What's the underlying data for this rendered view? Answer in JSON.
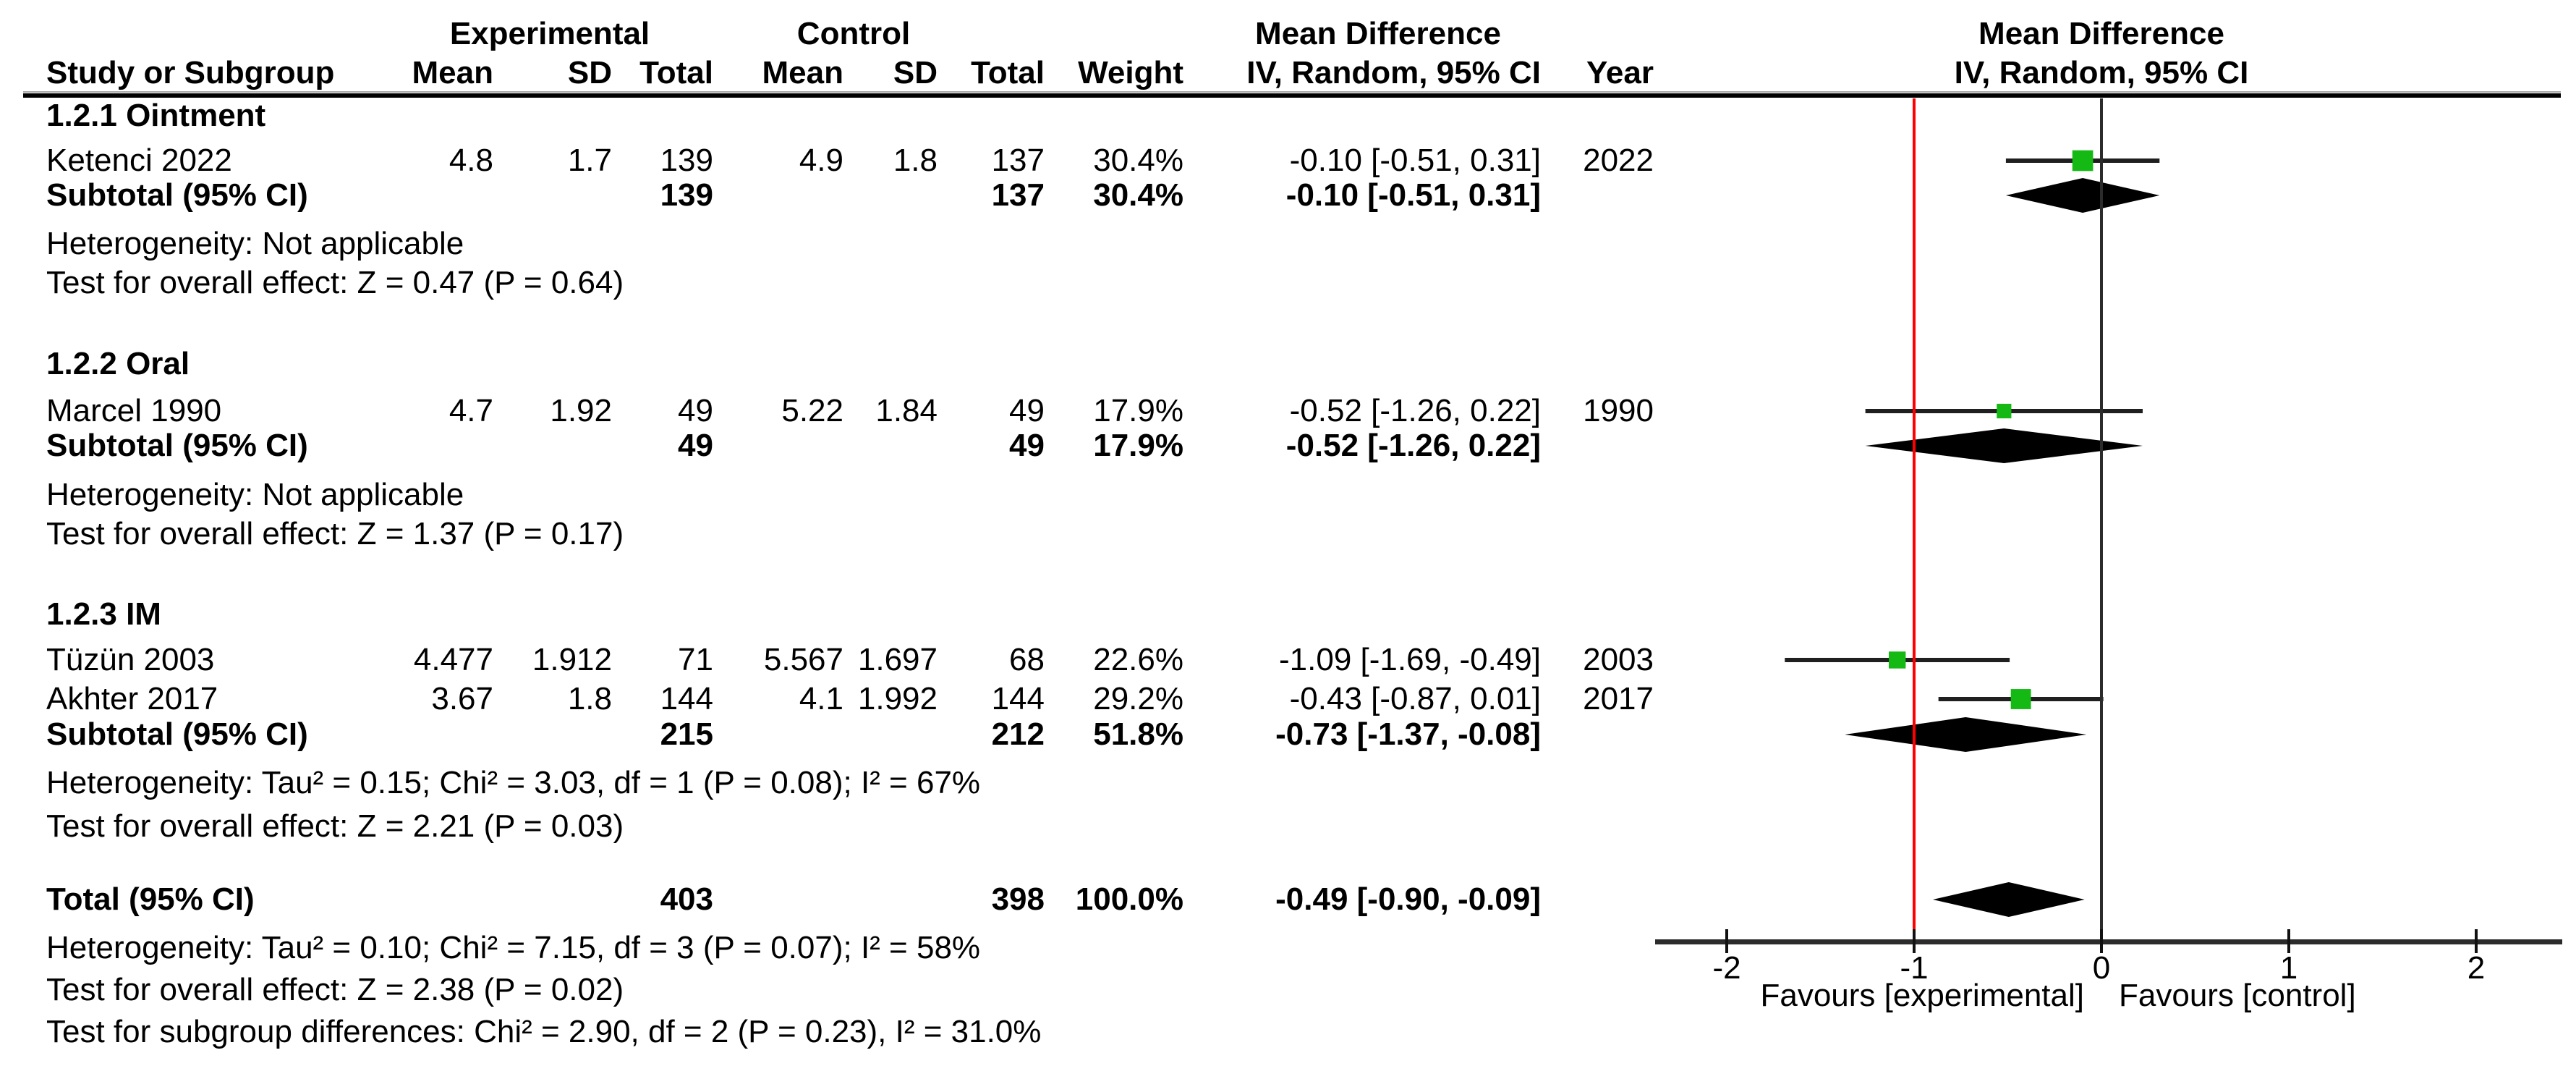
{
  "colors": {
    "marker_green": "#14b914",
    "reference_line_red": "#ff0000",
    "zero_line": "#2b2b2b",
    "axis_line": "#2b2b2b",
    "ci_line": "#1f1f1f",
    "diamond_black": "#000000",
    "separator_black": "#000000",
    "text": "#000000"
  },
  "table": {
    "header": {
      "study": "Study or Subgroup",
      "experimental": "Experimental",
      "control": "Control",
      "mean": "Mean",
      "sd": "SD",
      "total": "Total",
      "weight": "Weight",
      "mean_difference": "Mean Difference",
      "method": "IV, Random, 95% CI",
      "year": "Year"
    }
  },
  "plot": {
    "header_line1": "Mean Difference",
    "header_line2": "IV, Random, 95% CI"
  },
  "chart_data": {
    "type": "forest",
    "effect_measure": "Mean Difference",
    "method": "IV, Random, 95% CI",
    "x_axis": {
      "ticks": [
        -2,
        -1,
        0,
        1,
        2
      ],
      "tick_labels": [
        "-2",
        "-1",
        "0",
        "1",
        "2"
      ],
      "range": [
        -2.38,
        2.46
      ],
      "zero_line": 0,
      "reference_line": -1
    },
    "favours_left": "Favours [experimental]",
    "favours_right": "Favours [control]",
    "subgroups": [
      {
        "label": "1.2.1 Ointment",
        "studies": [
          {
            "name": "Ketenci 2022",
            "exp_mean": "4.8",
            "exp_sd": "1.7",
            "exp_total": "139",
            "ctrl_mean": "4.9",
            "ctrl_sd": "1.8",
            "ctrl_total": "137",
            "weight": "30.4%",
            "weight_value": 30.4,
            "ci_label": "-0.10 [-0.51, 0.31]",
            "year": "2022",
            "effect": -0.1,
            "ci_low": -0.51,
            "ci_high": 0.31
          }
        ],
        "subtotal": {
          "label": "Subtotal (95% CI)",
          "exp_total": "139",
          "ctrl_total": "137",
          "weight": "30.4%",
          "ci_label": "-0.10 [-0.51, 0.31]",
          "effect": -0.1,
          "ci_low": -0.51,
          "ci_high": 0.31
        },
        "heterogeneity": "Heterogeneity: Not applicable",
        "overall_effect": "Test for overall effect: Z = 0.47 (P = 0.64)"
      },
      {
        "label": "1.2.2 Oral",
        "studies": [
          {
            "name": "Marcel 1990",
            "exp_mean": "4.7",
            "exp_sd": "1.92",
            "exp_total": "49",
            "ctrl_mean": "5.22",
            "ctrl_sd": "1.84",
            "ctrl_total": "49",
            "weight": "17.9%",
            "weight_value": 17.9,
            "ci_label": "-0.52 [-1.26, 0.22]",
            "year": "1990",
            "effect": -0.52,
            "ci_low": -1.26,
            "ci_high": 0.22
          }
        ],
        "subtotal": {
          "label": "Subtotal (95% CI)",
          "exp_total": "49",
          "ctrl_total": "49",
          "weight": "17.9%",
          "ci_label": "-0.52 [-1.26, 0.22]",
          "effect": -0.52,
          "ci_low": -1.26,
          "ci_high": 0.22
        },
        "heterogeneity": "Heterogeneity: Not applicable",
        "overall_effect": "Test for overall effect: Z = 1.37 (P = 0.17)"
      },
      {
        "label": "1.2.3 IM",
        "studies": [
          {
            "name": "Tüzün 2003",
            "exp_mean": "4.477",
            "exp_sd": "1.912",
            "exp_total": "71",
            "ctrl_mean": "5.567",
            "ctrl_sd": "1.697",
            "ctrl_total": "68",
            "weight": "22.6%",
            "weight_value": 22.6,
            "ci_label": "-1.09 [-1.69, -0.49]",
            "year": "2003",
            "effect": -1.09,
            "ci_low": -1.69,
            "ci_high": -0.49
          },
          {
            "name": "Akhter 2017",
            "exp_mean": "3.67",
            "exp_sd": "1.8",
            "exp_total": "144",
            "ctrl_mean": "4.1",
            "ctrl_sd": "1.992",
            "ctrl_total": "144",
            "weight": "29.2%",
            "weight_value": 29.2,
            "ci_label": "-0.43 [-0.87, 0.01]",
            "year": "2017",
            "effect": -0.43,
            "ci_low": -0.87,
            "ci_high": 0.01
          }
        ],
        "subtotal": {
          "label": "Subtotal (95% CI)",
          "exp_total": "215",
          "ctrl_total": "212",
          "weight": "51.8%",
          "ci_label": "-0.73 [-1.37, -0.08]",
          "effect": -0.73,
          "ci_low": -1.37,
          "ci_high": -0.08
        },
        "heterogeneity": "Heterogeneity: Tau² = 0.15; Chi² = 3.03, df = 1 (P = 0.08); I² = 67%",
        "overall_effect": "Test for overall effect: Z = 2.21 (P = 0.03)"
      }
    ],
    "total": {
      "label": "Total (95% CI)",
      "exp_total": "403",
      "ctrl_total": "398",
      "weight": "100.0%",
      "ci_label": "-0.49 [-0.90, -0.09]",
      "effect": -0.49,
      "ci_low": -0.9,
      "ci_high": -0.09,
      "heterogeneity": "Heterogeneity: Tau² = 0.10; Chi² = 7.15, df = 3 (P = 0.07); I² = 58%",
      "overall_effect": "Test for overall effect: Z = 2.38 (P = 0.02)",
      "subgroup_differences": "Test for subgroup differences: Chi² = 2.90, df = 2 (P = 0.23), I² = 31.0%"
    }
  }
}
